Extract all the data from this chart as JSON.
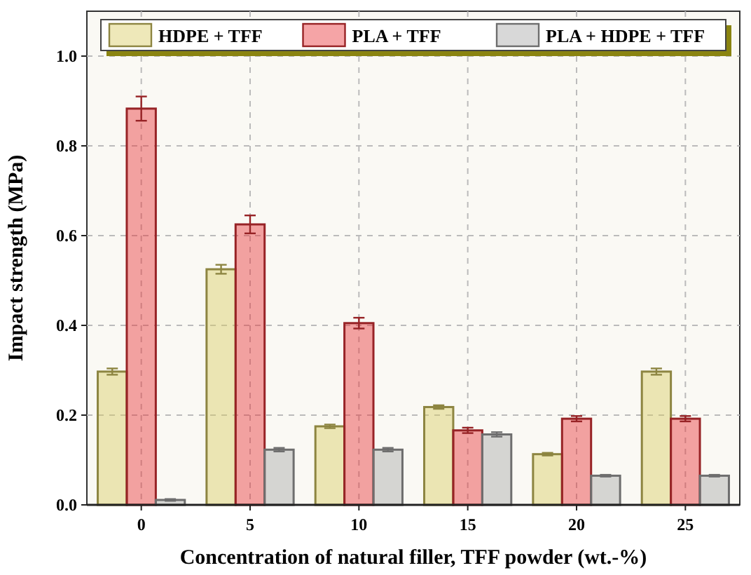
{
  "chart_data": {
    "type": "bar",
    "xlabel": "Concentration of natural filler, TFF powder (wt.-%)",
    "ylabel": "Impact strength (MPa)",
    "categories": [
      "0",
      "5",
      "10",
      "15",
      "20",
      "25"
    ],
    "series": [
      {
        "name": "HDPE + TFF",
        "color": "#d9cc63",
        "values": [
          0.297,
          0.525,
          0.175,
          0.218,
          0.113,
          0.297
        ],
        "errors": [
          0.007,
          0.01,
          0.004,
          0.004,
          0.003,
          0.007
        ]
      },
      {
        "name": "PLA + TFF",
        "color": "#e8353a",
        "values": [
          0.883,
          0.625,
          0.405,
          0.166,
          0.192,
          0.192
        ],
        "errors": [
          0.027,
          0.02,
          0.012,
          0.006,
          0.006,
          0.006
        ]
      },
      {
        "name": "PLA + HDPE + TFF",
        "color": "#a8a8a8",
        "values": [
          0.011,
          0.123,
          0.123,
          0.157,
          0.065,
          0.065
        ],
        "errors": [
          0.002,
          0.004,
          0.004,
          0.005,
          0.002,
          0.002
        ]
      }
    ],
    "ylim": [
      0,
      1.1
    ],
    "yticks": [
      {
        "value": 0,
        "label": "0.0"
      },
      0.2,
      0.4,
      0.6,
      0.8,
      {
        "value": 1,
        "label": "1.0"
      }
    ],
    "grid": true,
    "legend": "top"
  }
}
